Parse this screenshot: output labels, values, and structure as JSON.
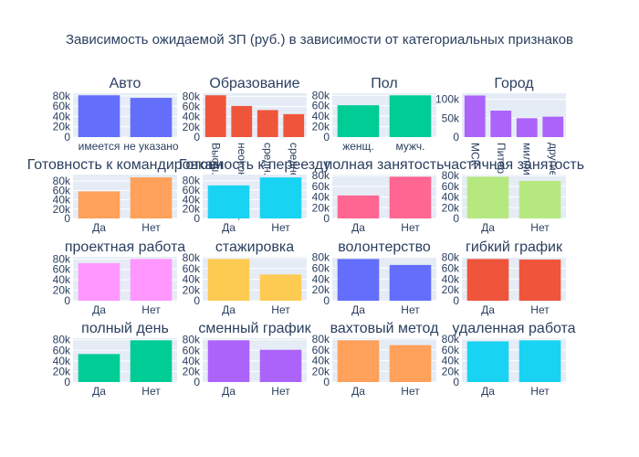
{
  "title": "Зависимость ожидаемой ЗП (руб.) в зависимости от категориальных признаков",
  "colors": {
    "plot_bg": "#e5ecf6",
    "grid": "#ffffff",
    "text": "#2a3f5f",
    "palette": [
      "#636efa",
      "#ef553b",
      "#00cc96",
      "#ab63fa",
      "#ffa15a",
      "#19d3f3",
      "#ff6692",
      "#b6e880",
      "#ff97ff",
      "#fecb52"
    ]
  },
  "chart_data": [
    {
      "type": "bar",
      "title": "Авто",
      "categories": [
        "имеется",
        "не указано"
      ],
      "values": [
        81000,
        76000
      ],
      "ylim": [
        0,
        85000
      ],
      "yticks": [
        "0",
        "20k",
        "40k",
        "60k",
        "80k"
      ],
      "color": "#636efa",
      "tick_rotation": 0
    },
    {
      "type": "bar",
      "title": "Образование",
      "categories": [
        "Высш.",
        "неоконч. высш.",
        "средн. спец.",
        "среднее"
      ],
      "values": [
        82000,
        61000,
        53000,
        45000
      ],
      "ylim": [
        0,
        86000
      ],
      "yticks": [
        "0",
        "20k",
        "40k",
        "60k",
        "80k"
      ],
      "color": "#ef553b",
      "tick_rotation": 90
    },
    {
      "type": "bar",
      "title": "Пол",
      "categories": [
        "женщ.",
        "мужч."
      ],
      "values": [
        61000,
        80000
      ],
      "ylim": [
        0,
        84000
      ],
      "yticks": [
        "0",
        "20k",
        "40k",
        "60k",
        "80k"
      ],
      "color": "#00cc96",
      "tick_rotation": 0
    },
    {
      "type": "bar",
      "title": "Город",
      "categories": [
        "МСК",
        "Питер",
        "миллионники",
        "другие"
      ],
      "values": [
        110000,
        70000,
        50000,
        54000
      ],
      "ylim": [
        0,
        116000
      ],
      "yticks": [
        "0",
        "50k",
        "100k"
      ],
      "color": "#ab63fa",
      "tick_rotation": 90
    },
    {
      "type": "bar",
      "title": "Готовность к командировкам",
      "categories": [
        "Да",
        "Нет"
      ],
      "values": [
        58000,
        88000
      ],
      "ylim": [
        0,
        94000
      ],
      "yticks": [
        "0",
        "20k",
        "40k",
        "60k",
        "80k"
      ],
      "color": "#ffa15a",
      "tick_rotation": 0
    },
    {
      "type": "bar",
      "title": "Готовность к переезду",
      "categories": [
        "Да",
        "Нет"
      ],
      "values": [
        70000,
        87000
      ],
      "ylim": [
        0,
        93000
      ],
      "yticks": [
        "0",
        "20k",
        "40k",
        "60k",
        "80k"
      ],
      "color": "#19d3f3",
      "tick_rotation": 0
    },
    {
      "type": "bar",
      "title": "полная занятость",
      "categories": [
        "Да",
        "Нет"
      ],
      "values": [
        43000,
        78000
      ],
      "ylim": [
        0,
        82000
      ],
      "yticks": [
        "0",
        "20k",
        "40k",
        "60k",
        "80k"
      ],
      "color": "#ff6692",
      "tick_rotation": 0
    },
    {
      "type": "bar",
      "title": "частичная занятость",
      "categories": [
        "Да",
        "Нет"
      ],
      "values": [
        78000,
        70000
      ],
      "ylim": [
        0,
        82000
      ],
      "yticks": [
        "0",
        "20k",
        "40k",
        "60k",
        "80k"
      ],
      "color": "#b6e880",
      "tick_rotation": 0
    },
    {
      "type": "bar",
      "title": "проектная работа",
      "categories": [
        "Да",
        "Нет"
      ],
      "values": [
        72000,
        80000
      ],
      "ylim": [
        0,
        84000
      ],
      "yticks": [
        "0",
        "20k",
        "40k",
        "60k",
        "80k"
      ],
      "color": "#ff97ff",
      "tick_rotation": 0
    },
    {
      "type": "bar",
      "title": "стажировка",
      "categories": [
        "Да",
        "Нет"
      ],
      "values": [
        78000,
        49000
      ],
      "ylim": [
        0,
        82000
      ],
      "yticks": [
        "0",
        "20k",
        "40k",
        "60k",
        "80k"
      ],
      "color": "#fecb52",
      "tick_rotation": 0
    },
    {
      "type": "bar",
      "title": "волонтерство",
      "categories": [
        "Да",
        "Нет"
      ],
      "values": [
        77000,
        66000
      ],
      "ylim": [
        0,
        81000
      ],
      "yticks": [
        "0",
        "20k",
        "40k",
        "60k",
        "80k"
      ],
      "color": "#636efa",
      "tick_rotation": 0
    },
    {
      "type": "bar",
      "title": "гибкий график",
      "categories": [
        "Да",
        "Нет"
      ],
      "values": [
        77000,
        76000
      ],
      "ylim": [
        0,
        81000
      ],
      "yticks": [
        "0",
        "20k",
        "40k",
        "60k",
        "80k"
      ],
      "color": "#ef553b",
      "tick_rotation": 0
    },
    {
      "type": "bar",
      "title": "полный день",
      "categories": [
        "Да",
        "Нет"
      ],
      "values": [
        53000,
        79000
      ],
      "ylim": [
        0,
        83000
      ],
      "yticks": [
        "0",
        "20k",
        "40k",
        "60k",
        "80k"
      ],
      "color": "#00cc96",
      "tick_rotation": 0
    },
    {
      "type": "bar",
      "title": "сменный график",
      "categories": [
        "Да",
        "Нет"
      ],
      "values": [
        79000,
        61000
      ],
      "ylim": [
        0,
        83000
      ],
      "yticks": [
        "0",
        "20k",
        "40k",
        "60k",
        "80k"
      ],
      "color": "#ab63fa",
      "tick_rotation": 0
    },
    {
      "type": "bar",
      "title": "вахтовый метод",
      "categories": [
        "Да",
        "Нет"
      ],
      "values": [
        78000,
        69000
      ],
      "ylim": [
        0,
        82000
      ],
      "yticks": [
        "0",
        "20k",
        "40k",
        "60k",
        "80k"
      ],
      "color": "#ffa15a",
      "tick_rotation": 0
    },
    {
      "type": "bar",
      "title": "удаленная работа",
      "categories": [
        "Да",
        "Нет"
      ],
      "values": [
        76000,
        78000
      ],
      "ylim": [
        0,
        82000
      ],
      "yticks": [
        "0",
        "20k",
        "40k",
        "60k",
        "80k"
      ],
      "color": "#19d3f3",
      "tick_rotation": 0
    }
  ]
}
